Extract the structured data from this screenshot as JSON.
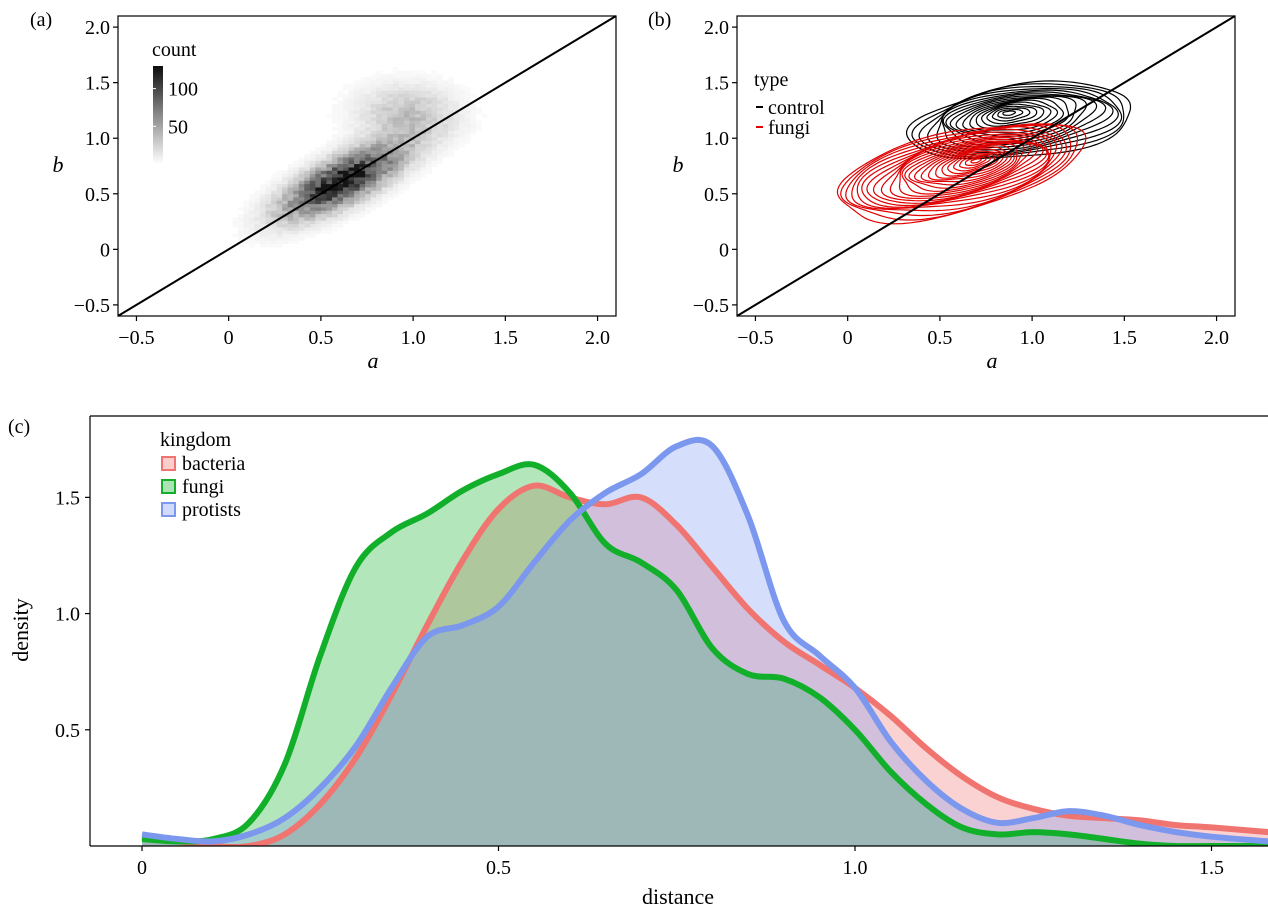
{
  "chart_data": [
    {
      "panel_label": "(a)",
      "type": "heatmap",
      "xlabel": "a",
      "ylabel": "b",
      "xlim": [
        -0.6,
        2.1
      ],
      "ylim": [
        -0.6,
        2.1
      ],
      "xticks": [
        -0.5,
        0,
        0.5,
        1.0,
        1.5,
        2.0
      ],
      "xtick_labels": [
        "−0.5",
        "0",
        "0.5",
        "1.0",
        "1.5",
        "2.0"
      ],
      "yticks": [
        -0.5,
        0,
        0.5,
        1.0,
        1.5,
        2.0
      ],
      "ytick_labels": [
        "−0.5",
        "0",
        "0.5",
        "1.0",
        "1.5",
        "2.0"
      ],
      "legend": {
        "title": "count",
        "labels": [
          "100",
          "50"
        ],
        "values": [
          100,
          50
        ],
        "range": [
          0,
          130
        ]
      },
      "density_center": [
        0.6,
        0.6
      ],
      "reference_line": "y = x",
      "colors": {
        "low": "#ffffff",
        "high": "#111111"
      }
    },
    {
      "panel_label": "(b)",
      "type": "contour",
      "xlabel": "a",
      "ylabel": "b",
      "xlim": [
        -0.6,
        2.1
      ],
      "ylim": [
        -0.6,
        2.1
      ],
      "xticks": [
        -0.5,
        0,
        0.5,
        1.0,
        1.5,
        2.0
      ],
      "xtick_labels": [
        "−0.5",
        "0",
        "0.5",
        "1.0",
        "1.5",
        "2.0"
      ],
      "yticks": [
        -0.5,
        0,
        0.5,
        1.0,
        1.5,
        2.0
      ],
      "ytick_labels": [
        "−0.5",
        "0",
        "0.5",
        "1.0",
        "1.5",
        "2.0"
      ],
      "legend": {
        "title": "type",
        "entries": [
          "control",
          "fungi"
        ]
      },
      "series": [
        {
          "name": "control",
          "color": "#000000",
          "center": [
            0.95,
            1.15
          ]
        },
        {
          "name": "fungi",
          "color": "#e00000",
          "center": [
            0.6,
            0.7
          ]
        }
      ],
      "reference_line": "y = x"
    },
    {
      "panel_label": "(c)",
      "type": "area",
      "xlabel": "distance",
      "ylabel": "density",
      "xlim": [
        -0.07,
        1.58
      ],
      "ylim": [
        0,
        1.85
      ],
      "xticks": [
        0,
        0.5,
        1.0,
        1.5
      ],
      "xtick_labels": [
        "0",
        "0.5",
        "1.0",
        "1.5"
      ],
      "yticks": [
        0.5,
        1.0,
        1.5
      ],
      "ytick_labels": [
        "0.5",
        "1.0",
        "1.5"
      ],
      "legend": {
        "title": "kingdom",
        "placement": "top-left"
      },
      "series": [
        {
          "name": "bacteria",
          "color": "#f07470",
          "points": [
            [
              0,
              0.04
            ],
            [
              0.05,
              0.02
            ],
            [
              0.1,
              0.0
            ],
            [
              0.15,
              0.0
            ],
            [
              0.2,
              0.05
            ],
            [
              0.25,
              0.18
            ],
            [
              0.3,
              0.38
            ],
            [
              0.35,
              0.65
            ],
            [
              0.4,
              0.95
            ],
            [
              0.45,
              1.23
            ],
            [
              0.5,
              1.45
            ],
            [
              0.55,
              1.55
            ],
            [
              0.6,
              1.5
            ],
            [
              0.65,
              1.47
            ],
            [
              0.7,
              1.5
            ],
            [
              0.75,
              1.38
            ],
            [
              0.8,
              1.2
            ],
            [
              0.85,
              1.02
            ],
            [
              0.9,
              0.88
            ],
            [
              0.95,
              0.78
            ],
            [
              1.0,
              0.68
            ],
            [
              1.05,
              0.56
            ],
            [
              1.1,
              0.42
            ],
            [
              1.15,
              0.3
            ],
            [
              1.2,
              0.21
            ],
            [
              1.25,
              0.16
            ],
            [
              1.3,
              0.13
            ],
            [
              1.35,
              0.12
            ],
            [
              1.4,
              0.11
            ],
            [
              1.45,
              0.09
            ],
            [
              1.5,
              0.08
            ],
            [
              1.58,
              0.06
            ]
          ]
        },
        {
          "name": "fungi",
          "color": "#12b02a",
          "points": [
            [
              0,
              0.03
            ],
            [
              0.05,
              0.02
            ],
            [
              0.1,
              0.03
            ],
            [
              0.15,
              0.1
            ],
            [
              0.2,
              0.35
            ],
            [
              0.25,
              0.82
            ],
            [
              0.3,
              1.2
            ],
            [
              0.35,
              1.35
            ],
            [
              0.4,
              1.43
            ],
            [
              0.45,
              1.53
            ],
            [
              0.5,
              1.6
            ],
            [
              0.55,
              1.64
            ],
            [
              0.6,
              1.52
            ],
            [
              0.65,
              1.3
            ],
            [
              0.7,
              1.22
            ],
            [
              0.75,
              1.1
            ],
            [
              0.8,
              0.85
            ],
            [
              0.85,
              0.74
            ],
            [
              0.9,
              0.72
            ],
            [
              0.95,
              0.64
            ],
            [
              1.0,
              0.5
            ],
            [
              1.05,
              0.32
            ],
            [
              1.1,
              0.18
            ],
            [
              1.15,
              0.08
            ],
            [
              1.2,
              0.05
            ],
            [
              1.25,
              0.06
            ],
            [
              1.3,
              0.05
            ],
            [
              1.35,
              0.03
            ],
            [
              1.4,
              0.01
            ],
            [
              1.45,
              0.0
            ],
            [
              1.5,
              0.0
            ],
            [
              1.58,
              0.0
            ]
          ]
        },
        {
          "name": "protists",
          "color": "#7b97ee",
          "points": [
            [
              0,
              0.05
            ],
            [
              0.05,
              0.03
            ],
            [
              0.1,
              0.02
            ],
            [
              0.15,
              0.05
            ],
            [
              0.2,
              0.12
            ],
            [
              0.25,
              0.25
            ],
            [
              0.3,
              0.43
            ],
            [
              0.35,
              0.68
            ],
            [
              0.4,
              0.9
            ],
            [
              0.45,
              0.95
            ],
            [
              0.5,
              1.03
            ],
            [
              0.55,
              1.22
            ],
            [
              0.6,
              1.4
            ],
            [
              0.65,
              1.52
            ],
            [
              0.7,
              1.6
            ],
            [
              0.75,
              1.72
            ],
            [
              0.8,
              1.72
            ],
            [
              0.85,
              1.42
            ],
            [
              0.9,
              0.97
            ],
            [
              0.95,
              0.82
            ],
            [
              1.0,
              0.68
            ],
            [
              1.05,
              0.45
            ],
            [
              1.1,
              0.28
            ],
            [
              1.15,
              0.16
            ],
            [
              1.2,
              0.1
            ],
            [
              1.25,
              0.12
            ],
            [
              1.3,
              0.15
            ],
            [
              1.35,
              0.13
            ],
            [
              1.4,
              0.09
            ],
            [
              1.45,
              0.06
            ],
            [
              1.5,
              0.04
            ],
            [
              1.58,
              0.02
            ]
          ]
        }
      ]
    }
  ]
}
